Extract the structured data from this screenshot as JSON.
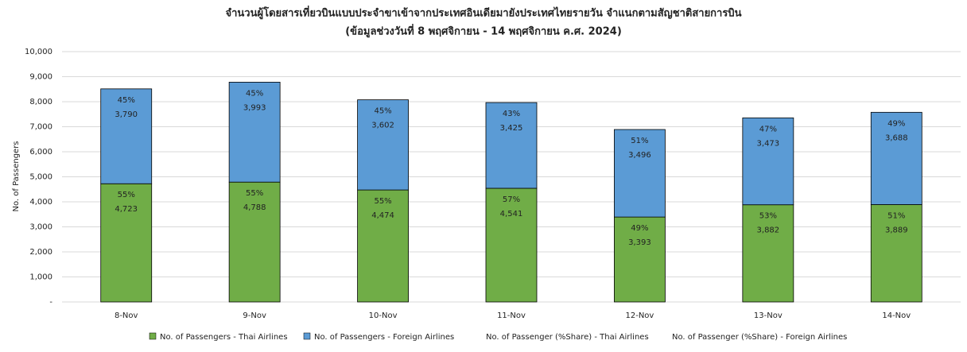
{
  "chart_data": {
    "type": "stacked_bar",
    "title": "จำนวนผู้โดยสารเที่ยวบินแบบประจำขาเข้าจากประเทศอินเดียมายังประเทศไทยรายวัน  จำแนกตามสัญชาติสายการบิน",
    "subtitle": "(ข้อมูลช่วงวันที่ 8 พฤศจิกายน - 14 พฤศจิกายน ค.ศ. 2024)",
    "y_label": "No. of Passengers",
    "categories": [
      "8-Nov",
      "9-Nov",
      "10-Nov",
      "11-Nov",
      "12-Nov",
      "13-Nov",
      "14-Nov"
    ],
    "series": [
      {
        "name": "No. of Passengers - Thai Airlines",
        "color": "#70ad47",
        "values": [
          4723,
          4788,
          4474,
          4541,
          3393,
          3882,
          3889
        ],
        "value_labels": [
          "4,723",
          "4,788",
          "4,474",
          "4,541",
          "3,393",
          "3,882",
          "3,889"
        ]
      },
      {
        "name": "No. of Passengers - Foreign Airlines",
        "color": "#5b9bd5",
        "values": [
          3790,
          3993,
          3602,
          3425,
          3496,
          3473,
          3688
        ],
        "value_labels": [
          "3,790",
          "3,993",
          "3,602",
          "3,425",
          "3,496",
          "3,473",
          "3,688"
        ]
      },
      {
        "name": "No. of Passenger (%Share) - Thai Airlines",
        "values": [
          55,
          55,
          55,
          57,
          49,
          53,
          51
        ],
        "value_labels": [
          "55%",
          "55%",
          "55%",
          "57%",
          "49%",
          "53%",
          "51%"
        ]
      },
      {
        "name": "No. of Passenger (%Share) - Foreign Airlines",
        "values": [
          45,
          45,
          45,
          43,
          51,
          47,
          49
        ],
        "value_labels": [
          "45%",
          "45%",
          "45%",
          "43%",
          "51%",
          "47%",
          "49%"
        ]
      }
    ],
    "ylim": [
      0,
      10000
    ],
    "yticks": [
      {
        "value": 0,
        "label": "-"
      },
      {
        "value": 1000,
        "label": "1,000"
      },
      {
        "value": 2000,
        "label": "2,000"
      },
      {
        "value": 3000,
        "label": "3,000"
      },
      {
        "value": 4000,
        "label": "4,000"
      },
      {
        "value": 5000,
        "label": "5,000"
      },
      {
        "value": 6000,
        "label": "6,000"
      },
      {
        "value": 7000,
        "label": "7,000"
      },
      {
        "value": 8000,
        "label": "8,000"
      },
      {
        "value": 9000,
        "label": "9,000"
      },
      {
        "value": 10000,
        "label": "10,000"
      }
    ],
    "grid": true
  }
}
